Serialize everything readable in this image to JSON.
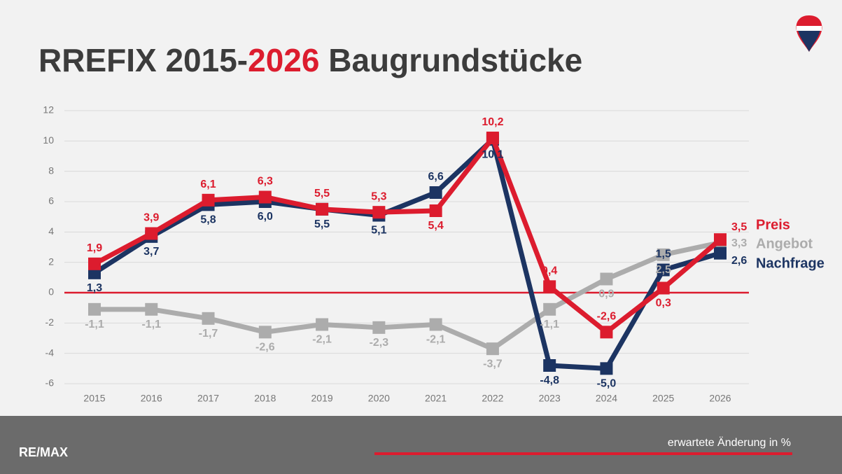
{
  "chart_data": {
    "type": "line",
    "title": [
      "RREFIX 2015-",
      "2026",
      " Baugrundstücke"
    ],
    "categories": [
      "2015",
      "2016",
      "2017",
      "2018",
      "2019",
      "2020",
      "2021",
      "2022",
      "2023",
      "2024",
      "2025",
      "2026"
    ],
    "series": [
      {
        "name": "Preis",
        "color": "#dc1c2e",
        "values": [
          1.9,
          3.9,
          6.1,
          6.3,
          5.5,
          5.3,
          5.4,
          10.2,
          0.4,
          -2.6,
          0.3,
          3.5
        ],
        "value_labels": [
          "1,9",
          "3,9",
          "6,1",
          "6,3",
          "5,5",
          "5,3",
          "5,4",
          "10,2",
          "0,4",
          "-2,6",
          "0,3",
          "3,5"
        ]
      },
      {
        "name": "Angebot",
        "color": "#acacac",
        "values": [
          -1.1,
          -1.1,
          -1.7,
          -2.6,
          -2.1,
          -2.3,
          -2.1,
          -3.7,
          -1.1,
          0.9,
          2.5,
          3.3
        ],
        "value_labels": [
          "-1,1",
          "-1,1",
          "-1,7",
          "-2,6",
          "-2,1",
          "-2,3",
          "-2,1",
          "-3,7",
          "-1,1",
          "0,9",
          "2,5",
          "3,3"
        ]
      },
      {
        "name": "Nachfrage",
        "color": "#1c3462",
        "values": [
          1.3,
          3.7,
          5.8,
          6.0,
          5.5,
          5.1,
          6.6,
          10.1,
          -4.8,
          -5.0,
          1.5,
          2.6
        ],
        "value_labels": [
          "1,3",
          "3,7",
          "5,8",
          "6,0",
          "5,5",
          "5,1",
          "6,6",
          "10,1",
          "-4,8",
          "-5,0",
          "1,5",
          "2,6"
        ]
      }
    ],
    "ylim": [
      -6,
      12
    ],
    "yticks": [
      -6,
      -4,
      -2,
      0,
      2,
      4,
      6,
      8,
      10,
      12
    ],
    "grid": true,
    "zero_line_color": "#dc1c2e"
  },
  "footer": {
    "logo": "RE/MAX",
    "note": "erwartete Änderung in %"
  }
}
